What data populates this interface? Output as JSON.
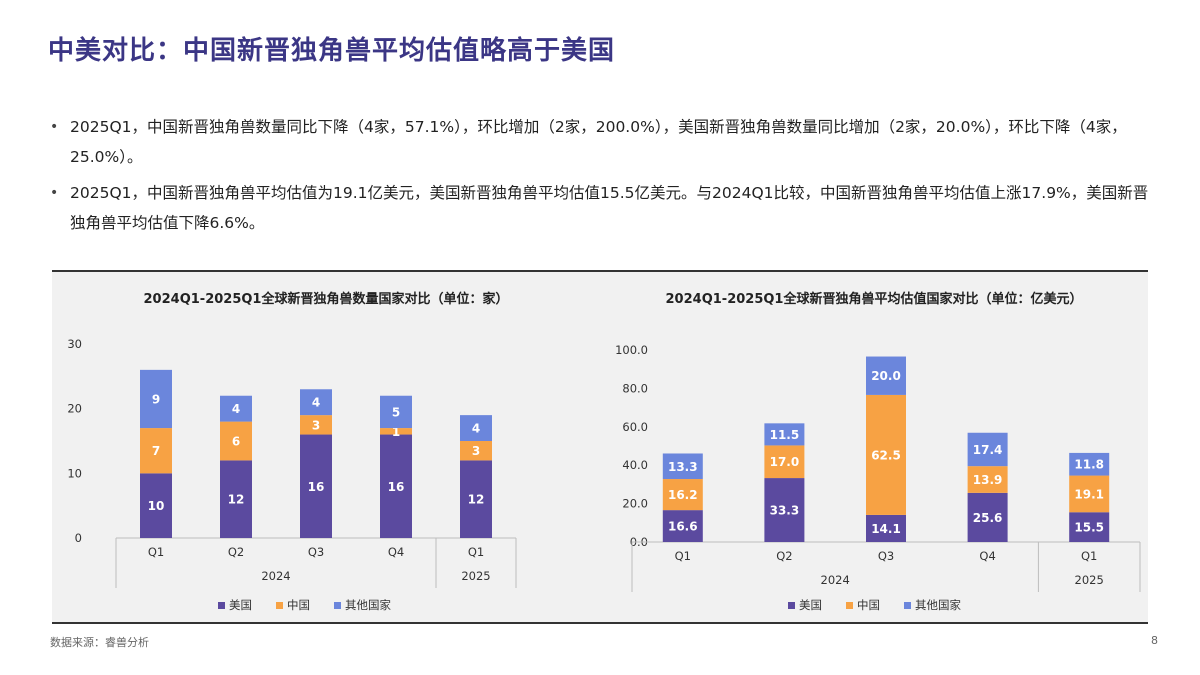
{
  "page": {
    "title": "中美对比：中国新晋独角兽平均估值略高于美国",
    "bullets": [
      "2025Q1，中国新晋独角兽数量同比下降（4家，57.1%），环比增加（2家，200.0%），美国新晋独角兽数量同比增加（2家，20.0%），环比下降（4家，25.0%）。",
      "2025Q1，中国新晋独角兽平均估值为19.1亿美元，美国新晋独角兽平均估值15.5亿美元。与2024Q1比较，中国新晋独角兽平均估值上涨17.9%，美国新晋独角兽平均估值下降6.6%。"
    ],
    "bullet_symbol": "•",
    "source": "数据来源：睿兽分析",
    "page_number": "8"
  },
  "colors": {
    "us": "#5b4a9f",
    "china": "#f7a244",
    "other": "#6b86dc",
    "title": "#3b3685"
  },
  "chart_data": [
    {
      "type": "bar",
      "stacked": true,
      "title": "2024Q1-2025Q1全球新晋独角兽数量国家对比（单位：家）",
      "categories": [
        "Q1",
        "Q2",
        "Q3",
        "Q4",
        "Q1"
      ],
      "groups": [
        {
          "label": "2024",
          "count": 4
        },
        {
          "label": "2025",
          "count": 1
        }
      ],
      "series": [
        {
          "name": "美国",
          "values": [
            10,
            12,
            16,
            16,
            12
          ]
        },
        {
          "name": "中国",
          "values": [
            7,
            6,
            3,
            1,
            3
          ]
        },
        {
          "name": "其他国家",
          "values": [
            9,
            4,
            4,
            5,
            4
          ]
        }
      ],
      "ylim": [
        0,
        30
      ],
      "yticks": [
        "0",
        "10",
        "20",
        "30"
      ],
      "grid": false,
      "legend": "bottom"
    },
    {
      "type": "bar",
      "stacked": true,
      "title": "2024Q1-2025Q1全球新晋独角兽平均估值国家对比（单位：亿美元）",
      "categories": [
        "Q1",
        "Q2",
        "Q3",
        "Q4",
        "Q1"
      ],
      "groups": [
        {
          "label": "2024",
          "count": 4
        },
        {
          "label": "2025",
          "count": 1
        }
      ],
      "series": [
        {
          "name": "美国",
          "values": [
            16.6,
            33.3,
            14.1,
            25.6,
            15.5
          ],
          "labels": [
            "16.6",
            "33.3",
            "14.1",
            "25.6",
            "15.5"
          ]
        },
        {
          "name": "中国",
          "values": [
            16.2,
            17.0,
            62.5,
            13.9,
            19.1
          ],
          "labels": [
            "16.2",
            "17.0",
            "62.5",
            "13.9",
            "19.1"
          ]
        },
        {
          "name": "其他国家",
          "values": [
            13.3,
            11.5,
            20.0,
            17.4,
            11.8
          ],
          "labels": [
            "13.3",
            "11.5",
            "20.0",
            "17.4",
            "11.8"
          ]
        }
      ],
      "ylim": [
        0,
        100
      ],
      "yticks": [
        "0.0",
        "20.0",
        "40.0",
        "60.0",
        "80.0",
        "100.0"
      ],
      "grid": false,
      "legend": "bottom"
    }
  ]
}
